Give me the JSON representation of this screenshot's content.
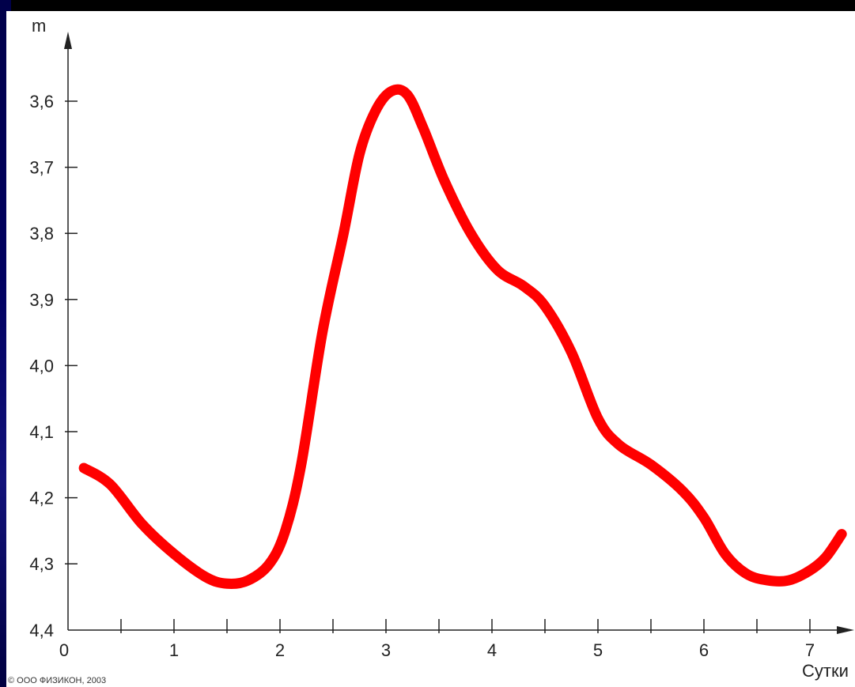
{
  "chart_data": {
    "type": "line",
    "ylabel": "m",
    "xlabel": "Сутки",
    "xlim": [
      0,
      7.4
    ],
    "ylim": [
      3.5,
      4.4
    ],
    "y_inverted": true,
    "x_ticks": [
      0,
      0.5,
      1,
      1.5,
      2,
      2.5,
      3,
      3.5,
      4,
      4.5,
      5,
      5.5,
      6,
      6.5,
      7
    ],
    "x_tick_labels": [
      {
        "value": 0,
        "label": "0"
      },
      {
        "value": 1,
        "label": "1"
      },
      {
        "value": 2,
        "label": "2"
      },
      {
        "value": 3,
        "label": "3"
      },
      {
        "value": 4,
        "label": "4"
      },
      {
        "value": 5,
        "label": "5"
      },
      {
        "value": 6,
        "label": "6"
      },
      {
        "value": 7,
        "label": "7"
      }
    ],
    "y_ticks": [
      {
        "value": 3.6,
        "label": "3,6"
      },
      {
        "value": 3.7,
        "label": "3,7"
      },
      {
        "value": 3.8,
        "label": "3,8"
      },
      {
        "value": 3.9,
        "label": "3,9"
      },
      {
        "value": 4.0,
        "label": "4,0"
      },
      {
        "value": 4.1,
        "label": "4,1"
      },
      {
        "value": 4.2,
        "label": "4,2"
      },
      {
        "value": 4.3,
        "label": "4,3"
      },
      {
        "value": 4.4,
        "label": "4,4"
      }
    ],
    "series": [
      {
        "color": "#ff0000",
        "x": [
          0.15,
          0.4,
          0.7,
          1.0,
          1.3,
          1.5,
          1.7,
          1.9,
          2.05,
          2.2,
          2.4,
          2.6,
          2.75,
          2.9,
          3.05,
          3.2,
          3.35,
          3.55,
          3.8,
          4.05,
          4.3,
          4.5,
          4.75,
          5.0,
          5.2,
          5.5,
          5.8,
          6.0,
          6.2,
          6.4,
          6.6,
          6.8,
          7.0,
          7.15,
          7.3
        ],
        "y": [
          4.155,
          4.18,
          4.24,
          4.285,
          4.32,
          4.33,
          4.325,
          4.3,
          4.25,
          4.15,
          3.95,
          3.8,
          3.68,
          3.615,
          3.585,
          3.59,
          3.64,
          3.72,
          3.8,
          3.855,
          3.88,
          3.91,
          3.98,
          4.08,
          4.12,
          4.15,
          4.19,
          4.23,
          4.285,
          4.315,
          4.325,
          4.325,
          4.31,
          4.29,
          4.255
        ]
      }
    ]
  },
  "credit": "© ООО ФИЗИКОН, 2003"
}
